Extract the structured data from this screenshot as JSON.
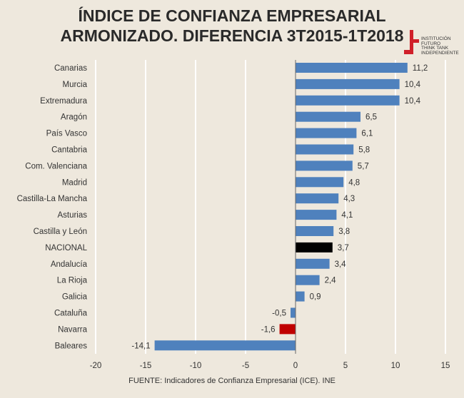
{
  "title_line1": "ÍNDICE DE CONFIANZA EMPRESARIAL",
  "title_line2": "ARMONIZADO. DIFERENCIA 3T2015-1T2018",
  "logo": {
    "lines": [
      "INSTITUCIÓN",
      "FUTURO",
      "THINK TANK",
      "INDEPENDIENTE"
    ],
    "color": "#d0202a"
  },
  "footer": "FUENTE: Indicadores de Confianza Empresarial (ICE). INE",
  "chart_data": {
    "type": "bar",
    "orientation": "horizontal",
    "categories": [
      "Canarias",
      "Murcia",
      "Extremadura",
      "Aragón",
      "País Vasco",
      "Cantabria",
      "Com. Valenciana",
      "Madrid",
      "Castilla-La Mancha",
      "Asturias",
      "Castilla y León",
      "NACIONAL",
      "Andalucía",
      "La Rioja",
      "Galicia",
      "Cataluña",
      "Navarra",
      "Baleares"
    ],
    "values": [
      11.2,
      10.4,
      10.4,
      6.5,
      6.1,
      5.8,
      5.7,
      4.8,
      4.3,
      4.1,
      3.8,
      3.7,
      3.4,
      2.4,
      0.9,
      -0.5,
      -1.6,
      -14.1
    ],
    "labels": [
      "11,2",
      "10,4",
      "10,4",
      "6,5",
      "6,1",
      "5,8",
      "5,7",
      "4,8",
      "4,3",
      "4,1",
      "3,8",
      "3,7",
      "3,4",
      "2,4",
      "0,9",
      "-0,5",
      "-1,6",
      "-14,1"
    ],
    "xlim": [
      -20,
      15
    ],
    "xticks": [
      -20,
      -15,
      -10,
      -5,
      0,
      5,
      10,
      15
    ],
    "grid": true,
    "colors": {
      "default": "#4f81bd",
      "NACIONAL": "#000000",
      "Navarra": "#c00000"
    }
  }
}
